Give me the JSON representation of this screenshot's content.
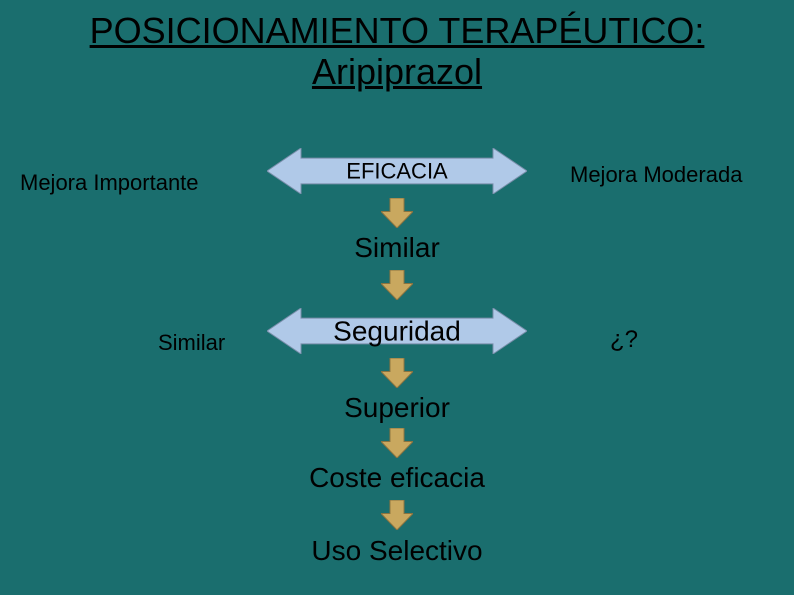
{
  "colors": {
    "background": "#1a6e6e",
    "title": "#000000",
    "text": "#000000",
    "arrow_fill": "#b0c9e8",
    "arrow_stroke": "#7a8fab",
    "down_arrow_fill": "#c9a85f",
    "down_arrow_stroke": "#8a7340"
  },
  "title": {
    "line1": "POSICIONAMIENTO TERAPÉUTICO:",
    "line2": "Aripiprazol",
    "fontsize": 36
  },
  "labels": {
    "mejora_importante": "Mejora Importante",
    "mejora_moderada": "Mejora Moderada",
    "similar_left": "Similar",
    "question": "¿?",
    "fontsize_side": 22,
    "fontsize_question": 24
  },
  "boxes": {
    "eficacia": "EFICACIA",
    "similar1": "Similar",
    "seguridad": "Seguridad",
    "superior": "Superior",
    "coste": "Coste eficacia",
    "uso": "Uso Selectivo",
    "fontsize_small": 22,
    "fontsize_big": 28
  },
  "geometry": {
    "biarrow_width": 260,
    "biarrow_height": 46,
    "biarrow_head": 34,
    "down_arrow_w": 32,
    "down_arrow_h": 30
  }
}
